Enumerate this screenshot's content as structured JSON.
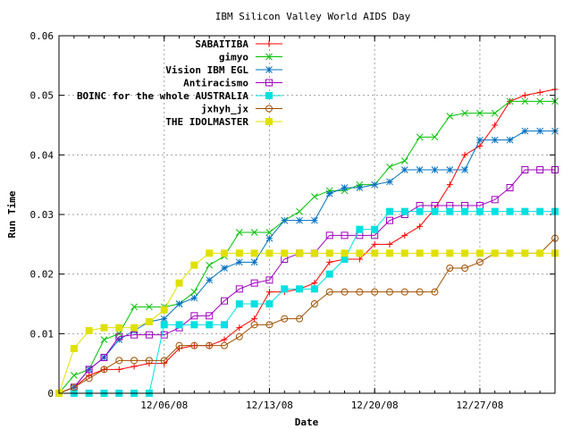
{
  "chart_data": {
    "type": "line",
    "title": "IBM Silicon Valley World AIDS Day",
    "xlabel": "Date",
    "ylabel": "Run Time",
    "xlim": [
      "2008-11-29",
      "2009-01-01"
    ],
    "ylim": [
      0,
      0.06
    ],
    "x_ticks": [
      "12/06/08",
      "12/13/08",
      "12/20/08",
      "12/27/08"
    ],
    "x_tick_dates": [
      "2008-12-06",
      "2008-12-13",
      "2008-12-20",
      "2008-12-27"
    ],
    "y_ticks": [
      "0",
      "0.01",
      "0.02",
      "0.03",
      "0.04",
      "0.05",
      "0.06"
    ],
    "y_tick_values": [
      0,
      0.01,
      0.02,
      0.03,
      0.04,
      0.05,
      0.06
    ],
    "grid": true,
    "legend_position": "top-right",
    "series": [
      {
        "name": "SABAITIBA",
        "color": "#ff0000",
        "marker": "plus",
        "x": [
          "2008-11-29",
          "2008-11-30",
          "2008-12-01",
          "2008-12-02",
          "2008-12-03",
          "2008-12-04",
          "2008-12-05",
          "2008-12-06",
          "2008-12-07",
          "2008-12-08",
          "2008-12-09",
          "2008-12-10",
          "2008-12-11",
          "2008-12-12",
          "2008-12-13",
          "2008-12-14",
          "2008-12-15",
          "2008-12-16",
          "2008-12-17",
          "2008-12-18",
          "2008-12-19",
          "2008-12-20",
          "2008-12-21",
          "2008-12-22",
          "2008-12-23",
          "2008-12-24",
          "2008-12-25",
          "2008-12-26",
          "2008-12-27",
          "2008-12-28",
          "2008-12-29",
          "2008-12-30",
          "2008-12-31",
          "2009-01-01"
        ],
        "y": [
          0,
          0.001,
          0.003,
          0.004,
          0.004,
          0.0045,
          0.005,
          0.005,
          0.0075,
          0.008,
          0.008,
          0.009,
          0.011,
          0.0125,
          0.017,
          0.017,
          0.0175,
          0.0185,
          0.022,
          0.0225,
          0.0225,
          0.025,
          0.025,
          0.0265,
          0.028,
          0.031,
          0.035,
          0.04,
          0.0415,
          0.045,
          0.049,
          0.05,
          0.0505,
          0.051
        ]
      },
      {
        "name": "gimyo",
        "color": "#00c000",
        "marker": "cross",
        "x": [
          "2008-11-29",
          "2008-11-30",
          "2008-12-01",
          "2008-12-02",
          "2008-12-03",
          "2008-12-04",
          "2008-12-05",
          "2008-12-06",
          "2008-12-07",
          "2008-12-08",
          "2008-12-09",
          "2008-12-10",
          "2008-12-11",
          "2008-12-12",
          "2008-12-13",
          "2008-12-14",
          "2008-12-15",
          "2008-12-16",
          "2008-12-17",
          "2008-12-18",
          "2008-12-19",
          "2008-12-20",
          "2008-12-21",
          "2008-12-22",
          "2008-12-23",
          "2008-12-24",
          "2008-12-25",
          "2008-12-26",
          "2008-12-27",
          "2008-12-28",
          "2008-12-29",
          "2008-12-30",
          "2008-12-31",
          "2009-01-01"
        ],
        "y": [
          0,
          0.003,
          0.004,
          0.009,
          0.01,
          0.0145,
          0.0145,
          0.0145,
          0.015,
          0.017,
          0.0215,
          0.023,
          0.027,
          0.027,
          0.027,
          0.029,
          0.0305,
          0.033,
          0.034,
          0.034,
          0.035,
          0.035,
          0.038,
          0.039,
          0.043,
          0.043,
          0.0465,
          0.047,
          0.047,
          0.047,
          0.049,
          0.049,
          0.049,
          0.049
        ]
      },
      {
        "name": "Vision IBM EGL",
        "color": "#0070c0",
        "marker": "star",
        "x": [
          "2008-11-29",
          "2008-11-30",
          "2008-12-01",
          "2008-12-02",
          "2008-12-03",
          "2008-12-04",
          "2008-12-05",
          "2008-12-06",
          "2008-12-07",
          "2008-12-08",
          "2008-12-09",
          "2008-12-10",
          "2008-12-11",
          "2008-12-12",
          "2008-12-13",
          "2008-12-14",
          "2008-12-15",
          "2008-12-16",
          "2008-12-17",
          "2008-12-18",
          "2008-12-19",
          "2008-12-20",
          "2008-12-21",
          "2008-12-22",
          "2008-12-23",
          "2008-12-24",
          "2008-12-25",
          "2008-12-26",
          "2008-12-27",
          "2008-12-28",
          "2008-12-29",
          "2008-12-30",
          "2008-12-31",
          "2009-01-01"
        ],
        "y": [
          0,
          0.001,
          0.004,
          0.006,
          0.009,
          0.0105,
          0.012,
          0.0125,
          0.015,
          0.016,
          0.019,
          0.021,
          0.022,
          0.022,
          0.026,
          0.029,
          0.029,
          0.029,
          0.0335,
          0.0345,
          0.0345,
          0.035,
          0.0355,
          0.0375,
          0.0375,
          0.0375,
          0.0375,
          0.0375,
          0.0425,
          0.0425,
          0.0425,
          0.044,
          0.044,
          0.044
        ]
      },
      {
        "name": "Antiracismo",
        "color": "#a000c0",
        "marker": "square-open",
        "x": [
          "2008-11-29",
          "2008-11-30",
          "2008-12-01",
          "2008-12-02",
          "2008-12-03",
          "2008-12-04",
          "2008-12-05",
          "2008-12-06",
          "2008-12-07",
          "2008-12-08",
          "2008-12-09",
          "2008-12-10",
          "2008-12-11",
          "2008-12-12",
          "2008-12-13",
          "2008-12-14",
          "2008-12-15",
          "2008-12-16",
          "2008-12-17",
          "2008-12-18",
          "2008-12-19",
          "2008-12-20",
          "2008-12-21",
          "2008-12-22",
          "2008-12-23",
          "2008-12-24",
          "2008-12-25",
          "2008-12-26",
          "2008-12-27",
          "2008-12-28",
          "2008-12-29",
          "2008-12-30",
          "2008-12-31",
          "2009-01-01"
        ],
        "y": [
          0,
          0.001,
          0.004,
          0.006,
          0.0095,
          0.0098,
          0.0098,
          0.0098,
          0.011,
          0.013,
          0.013,
          0.0155,
          0.0175,
          0.0185,
          0.019,
          0.0225,
          0.0235,
          0.0235,
          0.0265,
          0.0265,
          0.0265,
          0.0265,
          0.029,
          0.03,
          0.0315,
          0.0315,
          0.0315,
          0.0315,
          0.0315,
          0.0325,
          0.0345,
          0.0375,
          0.0375,
          0.0375
        ]
      },
      {
        "name": "BOINC for the whole AUSTRALIA",
        "color": "#00e0e0",
        "marker": "square-filled",
        "x": [
          "2008-11-29",
          "2008-11-30",
          "2008-12-01",
          "2008-12-02",
          "2008-12-03",
          "2008-12-04",
          "2008-12-05",
          "2008-12-06",
          "2008-12-07",
          "2008-12-08",
          "2008-12-09",
          "2008-12-10",
          "2008-12-11",
          "2008-12-12",
          "2008-12-13",
          "2008-12-14",
          "2008-12-15",
          "2008-12-16",
          "2008-12-17",
          "2008-12-18",
          "2008-12-19",
          "2008-12-20",
          "2008-12-21",
          "2008-12-22",
          "2008-12-23",
          "2008-12-24",
          "2008-12-25",
          "2008-12-26",
          "2008-12-27",
          "2008-12-28",
          "2008-12-29",
          "2008-12-30",
          "2008-12-31",
          "2009-01-01"
        ],
        "y": [
          0,
          0,
          0,
          0,
          0,
          0,
          0,
          0.0115,
          0.0115,
          0.0115,
          0.0115,
          0.0115,
          0.015,
          0.015,
          0.015,
          0.0175,
          0.0175,
          0.0175,
          0.02,
          0.0225,
          0.0275,
          0.0275,
          0.0305,
          0.0305,
          0.0305,
          0.0305,
          0.0305,
          0.0305,
          0.0305,
          0.0305,
          0.0305,
          0.0305,
          0.0305,
          0.0305
        ]
      },
      {
        "name": "jxhyh_jx",
        "color": "#a05000",
        "marker": "circle-open",
        "x": [
          "2008-11-29",
          "2008-11-30",
          "2008-12-01",
          "2008-12-02",
          "2008-12-03",
          "2008-12-04",
          "2008-12-05",
          "2008-12-06",
          "2008-12-07",
          "2008-12-08",
          "2008-12-09",
          "2008-12-10",
          "2008-12-11",
          "2008-12-12",
          "2008-12-13",
          "2008-12-14",
          "2008-12-15",
          "2008-12-16",
          "2008-12-17",
          "2008-12-18",
          "2008-12-19",
          "2008-12-20",
          "2008-12-21",
          "2008-12-22",
          "2008-12-23",
          "2008-12-24",
          "2008-12-25",
          "2008-12-26",
          "2008-12-27",
          "2008-12-28",
          "2008-12-29",
          "2008-12-30",
          "2008-12-31",
          "2009-01-01"
        ],
        "y": [
          0,
          0.001,
          0.0025,
          0.004,
          0.0055,
          0.0055,
          0.0055,
          0.0055,
          0.008,
          0.008,
          0.008,
          0.008,
          0.0095,
          0.0115,
          0.0115,
          0.0125,
          0.0125,
          0.015,
          0.017,
          0.017,
          0.017,
          0.017,
          0.017,
          0.017,
          0.017,
          0.017,
          0.021,
          0.021,
          0.022,
          0.0235,
          0.0235,
          0.0235,
          0.0235,
          0.026
        ]
      },
      {
        "name": "THE IDOLMASTER",
        "color": "#e0e000",
        "marker": "square-filled",
        "x": [
          "2008-11-29",
          "2008-11-30",
          "2008-12-01",
          "2008-12-02",
          "2008-12-03",
          "2008-12-04",
          "2008-12-05",
          "2008-12-06",
          "2008-12-07",
          "2008-12-08",
          "2008-12-09",
          "2008-12-10",
          "2008-12-11",
          "2008-12-12",
          "2008-12-13",
          "2008-12-14",
          "2008-12-15",
          "2008-12-16",
          "2008-12-17",
          "2008-12-18",
          "2008-12-19",
          "2008-12-20",
          "2008-12-21",
          "2008-12-22",
          "2008-12-23",
          "2008-12-24",
          "2008-12-25",
          "2008-12-26",
          "2008-12-27",
          "2008-12-28",
          "2008-12-29",
          "2008-12-30",
          "2008-12-31",
          "2009-01-01"
        ],
        "y": [
          0,
          0.0075,
          0.0105,
          0.011,
          0.011,
          0.011,
          0.012,
          0.014,
          0.0185,
          0.0215,
          0.0235,
          0.0235,
          0.0235,
          0.0235,
          0.0235,
          0.0235,
          0.0235,
          0.0235,
          0.0235,
          0.0235,
          0.0235,
          0.0235,
          0.0235,
          0.0235,
          0.0235,
          0.0235,
          0.0235,
          0.0235,
          0.0235,
          0.0235,
          0.0235,
          0.0235,
          0.0235,
          0.0235
        ]
      }
    ]
  }
}
